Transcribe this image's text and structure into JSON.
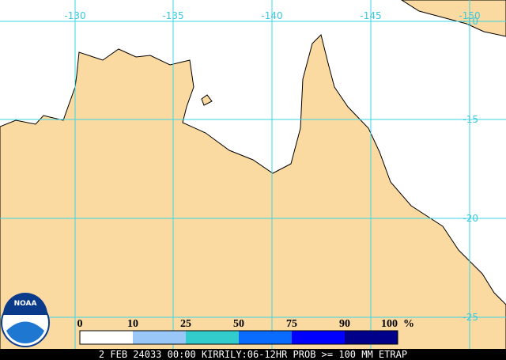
{
  "map": {
    "longitude_labels": [
      "-130",
      "-135",
      "-140",
      "-145",
      "-150"
    ],
    "latitude_labels": [
      "-10",
      "-15",
      "-20",
      "-25"
    ],
    "logo": "NOAA",
    "legend": {
      "labels": [
        "0",
        "10",
        "25",
        "50",
        "75",
        "90",
        "100"
      ],
      "unit": "%",
      "colors": [
        "#ffffff",
        "#99c8f8",
        "#33cccc",
        "#0a6cff",
        "#0000ff",
        "#00008b"
      ]
    },
    "footer": "2 FEB 24033 00:00 KIRRILY:06-12HR PROB >= 100 MM ETRAP"
  }
}
